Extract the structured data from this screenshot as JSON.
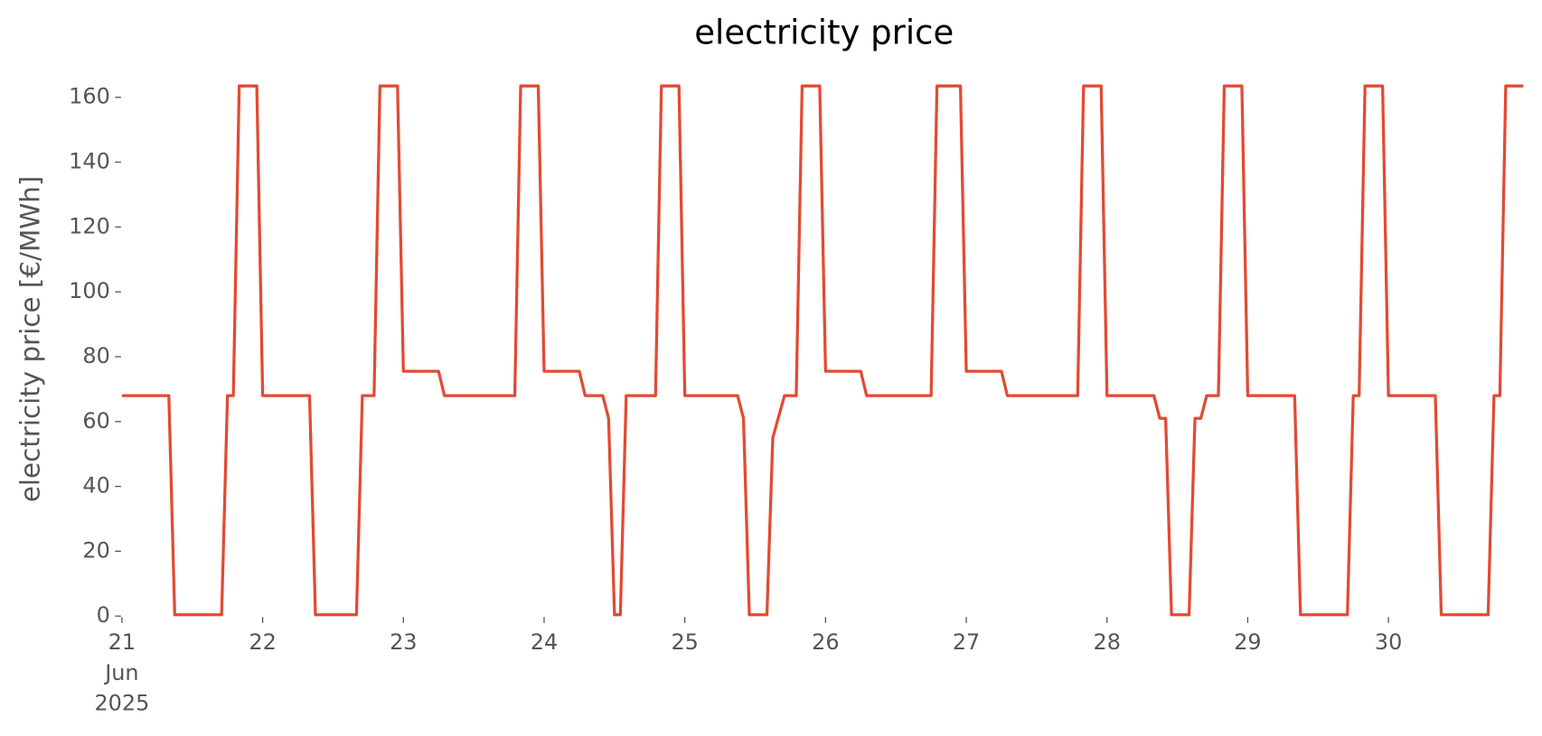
{
  "chart_data": {
    "type": "line",
    "title": "electricity price",
    "y_label": "electricity price [€/MWh]",
    "color": "#e24a33",
    "x": [
      "2025-06-21T00:00",
      "2025-06-21T08:00",
      "2025-06-21T09:00",
      "2025-06-21T17:00",
      "2025-06-21T18:00",
      "2025-06-21T19:00",
      "2025-06-21T20:00",
      "2025-06-21T23:00",
      "2025-06-22T00:00",
      "2025-06-22T08:00",
      "2025-06-22T09:00",
      "2025-06-22T16:00",
      "2025-06-22T17:00",
      "2025-06-22T19:00",
      "2025-06-22T20:00",
      "2025-06-22T23:00",
      "2025-06-23T00:00",
      "2025-06-23T06:00",
      "2025-06-23T07:00",
      "2025-06-23T19:00",
      "2025-06-23T20:00",
      "2025-06-23T23:00",
      "2025-06-24T00:00",
      "2025-06-24T06:00",
      "2025-06-24T07:00",
      "2025-06-24T10:00",
      "2025-06-24T11:00",
      "2025-06-24T12:00",
      "2025-06-24T13:00",
      "2025-06-24T14:00",
      "2025-06-24T19:00",
      "2025-06-24T20:00",
      "2025-06-24T23:00",
      "2025-06-25T00:00",
      "2025-06-25T09:00",
      "2025-06-25T10:00",
      "2025-06-25T11:00",
      "2025-06-25T14:00",
      "2025-06-25T15:00",
      "2025-06-25T17:00",
      "2025-06-25T19:00",
      "2025-06-25T20:00",
      "2025-06-25T23:00",
      "2025-06-26T00:00",
      "2025-06-26T06:00",
      "2025-06-26T07:00",
      "2025-06-26T18:00",
      "2025-06-26T19:00",
      "2025-06-26T23:00",
      "2025-06-27T00:00",
      "2025-06-27T06:00",
      "2025-06-27T07:00",
      "2025-06-27T19:00",
      "2025-06-27T20:00",
      "2025-06-27T23:00",
      "2025-06-28T00:00",
      "2025-06-28T08:00",
      "2025-06-28T09:00",
      "2025-06-28T10:00",
      "2025-06-28T11:00",
      "2025-06-28T14:00",
      "2025-06-28T15:00",
      "2025-06-28T16:00",
      "2025-06-28T17:00",
      "2025-06-28T19:00",
      "2025-06-28T20:00",
      "2025-06-28T23:00",
      "2025-06-29T00:00",
      "2025-06-29T08:00",
      "2025-06-29T09:00",
      "2025-06-29T17:00",
      "2025-06-29T18:00",
      "2025-06-29T19:00",
      "2025-06-29T20:00",
      "2025-06-29T23:00",
      "2025-06-30T00:00",
      "2025-06-30T08:00",
      "2025-06-30T09:00",
      "2025-06-30T17:00",
      "2025-06-30T18:00",
      "2025-06-30T19:00",
      "2025-06-30T20:00",
      "2025-06-30T23:00"
    ],
    "values": [
      68,
      68,
      0.4,
      0.4,
      68,
      68,
      163.5,
      163.5,
      68,
      68,
      0.4,
      0.4,
      68,
      68,
      163.5,
      163.5,
      75.5,
      75.5,
      68,
      68,
      163.5,
      163.5,
      75.5,
      75.5,
      68,
      68,
      61,
      0.4,
      0.4,
      68,
      68,
      163.5,
      163.5,
      68,
      68,
      61,
      0.4,
      0.4,
      55,
      68,
      68,
      163.5,
      163.5,
      75.5,
      75.5,
      68,
      68,
      163.5,
      163.5,
      75.5,
      75.5,
      68,
      68,
      163.5,
      163.5,
      68,
      68,
      61,
      61,
      0.4,
      0.4,
      61,
      61,
      68,
      68,
      163.5,
      163.5,
      68,
      68,
      0.4,
      0.4,
      68,
      68,
      163.5,
      163.5,
      68,
      68,
      0.4,
      0.4,
      68,
      68,
      163.5,
      163.5
    ],
    "xlim": [
      "2025-06-21T00:00",
      "2025-06-30T23:00"
    ],
    "xticks": [
      {
        "value": "2025-06-21T00:00",
        "label": "21\nJun\n2025"
      },
      {
        "value": "2025-06-22T00:00",
        "label": "22"
      },
      {
        "value": "2025-06-23T00:00",
        "label": "23"
      },
      {
        "value": "2025-06-24T00:00",
        "label": "24"
      },
      {
        "value": "2025-06-25T00:00",
        "label": "25"
      },
      {
        "value": "2025-06-26T00:00",
        "label": "26"
      },
      {
        "value": "2025-06-27T00:00",
        "label": "27"
      },
      {
        "value": "2025-06-28T00:00",
        "label": "28"
      },
      {
        "value": "2025-06-29T00:00",
        "label": "29"
      },
      {
        "value": "2025-06-30T00:00",
        "label": "30"
      }
    ],
    "ylim": [
      0,
      164
    ],
    "yticks": [
      0,
      20,
      40,
      60,
      80,
      100,
      120,
      140,
      160
    ],
    "grid": false
  }
}
